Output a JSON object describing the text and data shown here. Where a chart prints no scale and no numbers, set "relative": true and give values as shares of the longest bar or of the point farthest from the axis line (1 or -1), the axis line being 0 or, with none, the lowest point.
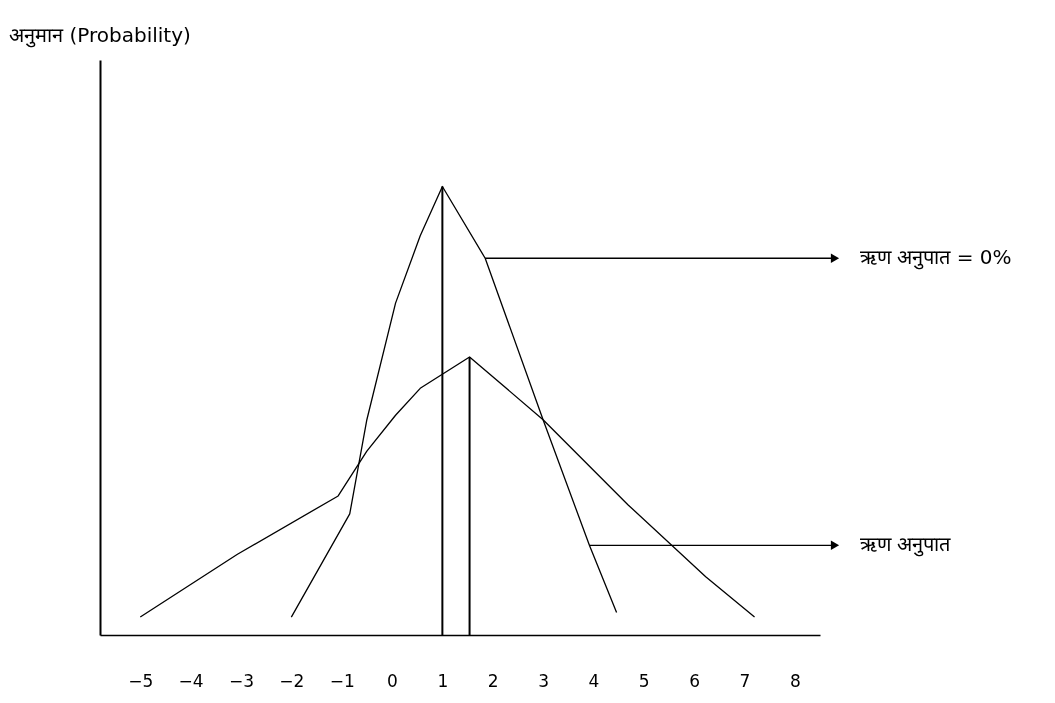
{
  "chart_data": {
    "type": "line",
    "relative": true,
    "xlim": [
      -5.8,
      8.5
    ],
    "xticks": [
      -5,
      -4,
      -3,
      -2,
      -1,
      0,
      1,
      2,
      3,
      4,
      5,
      6,
      7,
      8
    ],
    "grid": false,
    "series": [
      {
        "color": "#000000",
        "x": [
          -2,
          -0.84,
          -0.5,
          0.07,
          0.56,
          1,
          1.85,
          3,
          3.92,
          4.46
        ],
        "values": [
          0.04,
          0.27,
          0.48,
          0.74,
          0.89,
          1,
          0.84,
          0.48,
          0.2,
          0.05
        ]
      },
      {
        "color": "#000000",
        "x": [
          -5,
          -3.07,
          -1.07,
          -0.5,
          0.07,
          0.56,
          1.54,
          3,
          4.69,
          6.23,
          7.2
        ],
        "values": [
          0.04,
          0.18,
          0.31,
          0.41,
          0.49,
          0.55,
          0.62,
          0.48,
          0.29,
          0.13,
          0.04
        ]
      }
    ],
    "ref_lines": [
      {
        "axis": "x",
        "value": 1
      },
      {
        "axis": "x",
        "value": 1.54
      }
    ],
    "annotations": [
      "अनुमान (Probability)",
      {
        "text": "ऋण अनुपात = 0%",
        "x": 1.85,
        "y": 0.84
      },
      {
        "text": "ऋण अनुपात",
        "x": 3.92,
        "y": 0.2
      }
    ]
  }
}
